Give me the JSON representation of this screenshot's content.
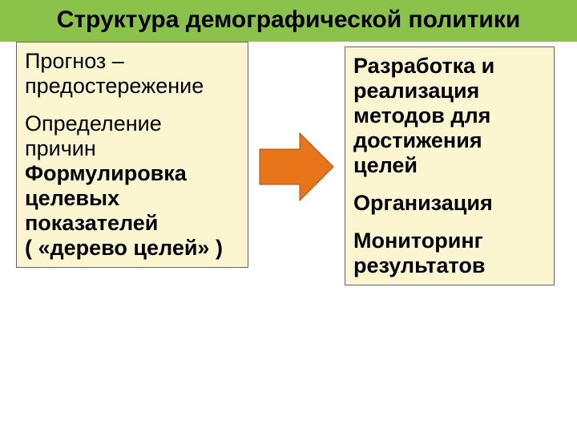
{
  "header": {
    "title": "Структура демографической политики",
    "background_color": "#8bc34a",
    "text_color": "#000000",
    "font_size": 30
  },
  "left_box": {
    "bg": "#fcf6d0",
    "border": "#666666",
    "font_size": 27,
    "line1a": "Прогноз –",
    "line1b": "предостережение",
    "line2a": "Определение",
    "line2b": "причин",
    "line3a": "Формулировка",
    "line3b": "целевых",
    "line3c": "показателей",
    "line3d": "( «дерево целей» )"
  },
  "right_box": {
    "bg": "#fcf6d0",
    "border": "#666666",
    "font_size": 27,
    "line1a": "Разработка и",
    "line1b": "реализация",
    "line1c": "методов для",
    "line1d": "достижения",
    "line1e": "целей",
    "line2": "Организация",
    "line3a": "Мониторинг",
    "line3b": "результатов"
  },
  "arrow": {
    "fill": "#e8751a",
    "stroke": "#aa4f0f",
    "width": 96,
    "height": 92
  }
}
